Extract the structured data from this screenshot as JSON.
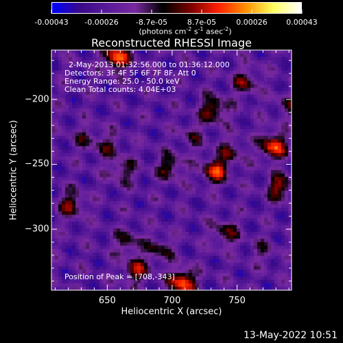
{
  "chart_data": {
    "type": "heatmap",
    "title": "Reconstructed RHESSI Image",
    "xlabel": "Heliocentric X (arcsec)",
    "ylabel": "Heliocentric Y (arcsec)",
    "xlim": [
      607,
      792
    ],
    "ylim": [
      -347,
      -162
    ],
    "x_ticks": [
      650,
      700,
      750
    ],
    "y_ticks": [
      -200,
      -250,
      -300
    ],
    "colorbar": {
      "range": [
        -0.00043,
        0.00043
      ],
      "tick_labels": [
        "-0.00043",
        "-0.00026",
        "-8.7e-05",
        "8.7e-05",
        "0.00026",
        "0.00043"
      ],
      "units_text": "(photons cm",
      "units_exp1": "-2",
      "units_mid": " s",
      "units_exp2": "-1",
      "units_mid2": " asec",
      "units_exp3": "-2",
      "units_end": ")",
      "colors": [
        "#0000ff",
        "#3a0a8a",
        "#5a1a9a",
        "#7a2aa0",
        "#000000",
        "#7a0000",
        "#ff2000",
        "#ff9000",
        "#ffff60",
        "#ffffff"
      ]
    },
    "annotations": [
      "2-May-2013 01:32:56.000 to 01:36:12.000",
      "Detectors: 3F 4F 5F 6F 7F 8F, Att 0",
      "Energy Range: 25.0 - 50.0 keV",
      "Clean     Total counts: 4.04E+03"
    ],
    "peak_label": "Position of Peak = [708,-343]",
    "peak": [
      708,
      -343
    ],
    "bright_sources": [
      {
        "x": 657,
        "y": -168,
        "v": 0.00043
      },
      {
        "x": 708,
        "y": -341,
        "v": 0.00043
      },
      {
        "x": 778,
        "y": -236,
        "v": 0.0004
      },
      {
        "x": 733,
        "y": -255,
        "v": 0.00036
      },
      {
        "x": 732,
        "y": -208,
        "v": 0.0003
      },
      {
        "x": 783,
        "y": -268,
        "v": 0.0003
      },
      {
        "x": 672,
        "y": -332,
        "v": 0.00028
      },
      {
        "x": 622,
        "y": -281,
        "v": 0.00026
      },
      {
        "x": 698,
        "y": -252,
        "v": 0.00024
      },
      {
        "x": 741,
        "y": -303,
        "v": 0.00022
      },
      {
        "x": 756,
        "y": -187,
        "v": 0.00022
      },
      {
        "x": 690,
        "y": -316,
        "v": 0.0002
      },
      {
        "x": 662,
        "y": -255,
        "v": 0.0002
      },
      {
        "x": 665,
        "y": -310,
        "v": 0.00018
      },
      {
        "x": 745,
        "y": -240,
        "v": 0.00018
      },
      {
        "x": 650,
        "y": -236,
        "v": 0.00016
      },
      {
        "x": 790,
        "y": -205,
        "v": 0.00015
      },
      {
        "x": 633,
        "y": -230,
        "v": 0.00014
      },
      {
        "x": 715,
        "y": -228,
        "v": 0.00014
      },
      {
        "x": 770,
        "y": -317,
        "v": 0.00012
      }
    ],
    "footer_date": "13-May-2022 10:51"
  }
}
